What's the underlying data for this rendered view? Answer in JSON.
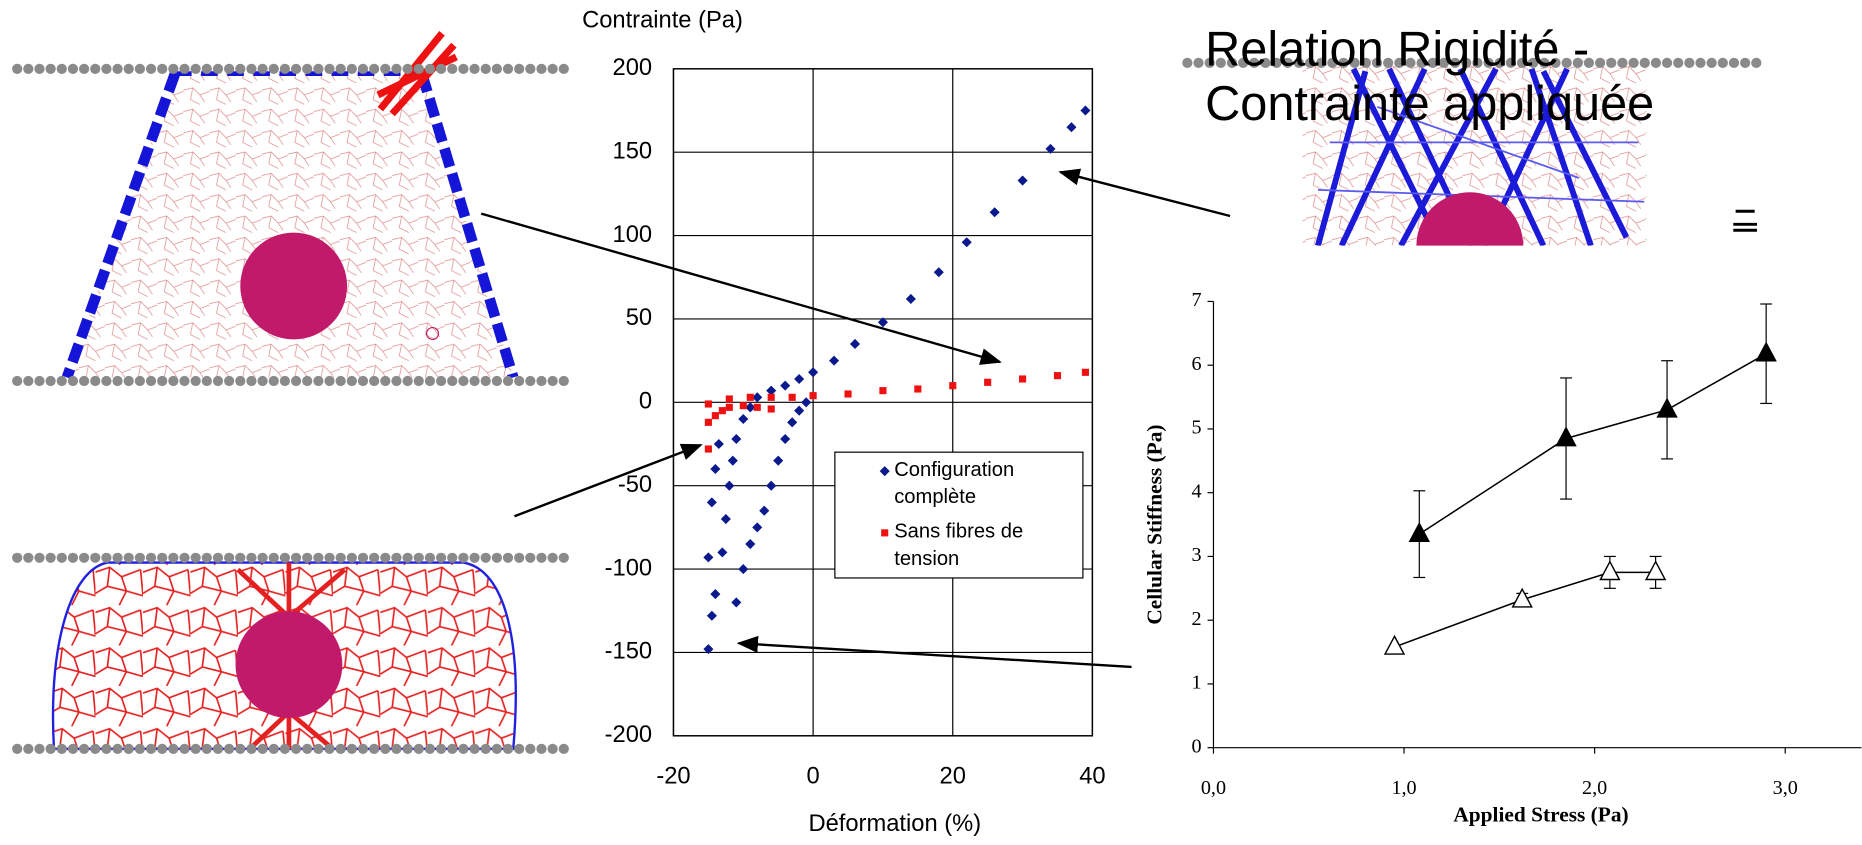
{
  "slide_title": "Relation Rigidité  - Contrainte appliquée",
  "chart_data": [
    {
      "type": "scatter",
      "ylabel": "Contrainte (Pa)",
      "xlabel": "Déformation (%)",
      "xlim": [
        -20,
        40
      ],
      "ylim": [
        -200,
        200
      ],
      "xticks": [
        -20,
        0,
        20,
        40
      ],
      "yticks": [
        -200,
        -150,
        -100,
        -50,
        0,
        50,
        100,
        150,
        200
      ],
      "grid": true,
      "series": [
        {
          "name": "Configuration complète",
          "color": "#0a1a8c",
          "marker": "diamond",
          "x": [
            -15,
            -14.5,
            -14,
            -13,
            -12.5,
            -12,
            -11.5,
            -11,
            -10,
            -9,
            -8,
            -6,
            -4,
            -2,
            0,
            3,
            6,
            10,
            14,
            18,
            22,
            26,
            30,
            34,
            37,
            39,
            -15,
            -14.5,
            -14,
            -13.5,
            -11,
            -10,
            -9,
            -8,
            -7,
            -6,
            -5,
            -4,
            -3,
            -2,
            -1
          ],
          "values": [
            -148,
            -128,
            -115,
            -90,
            -70,
            -50,
            -35,
            -22,
            -10,
            -3,
            3,
            7,
            10,
            14,
            18,
            25,
            35,
            48,
            62,
            78,
            96,
            114,
            133,
            152,
            165,
            175,
            -93,
            -60,
            -40,
            -25,
            -120,
            -100,
            -85,
            -75,
            -65,
            -50,
            -35,
            -22,
            -12,
            -5,
            0
          ]
        },
        {
          "name": "Sans fibres de tension",
          "color": "#ee1111",
          "marker": "square",
          "x": [
            -15,
            -15,
            -14,
            -13,
            -12,
            -10,
            -8,
            -6,
            -15,
            -12,
            -9,
            -6,
            -3,
            0,
            5,
            10,
            15,
            20,
            25,
            30,
            35,
            39
          ],
          "values": [
            -28,
            -12,
            -8,
            -5,
            -3,
            -2,
            -3,
            -4,
            -1,
            2,
            3,
            3,
            3,
            4,
            5,
            7,
            8,
            10,
            12,
            14,
            16,
            18
          ]
        }
      ]
    },
    {
      "type": "line",
      "ylabel": "Cellular Stiffness  (Pa)",
      "xlabel": "Applied Stress  (Pa)",
      "xlim": [
        0,
        3.4
      ],
      "ylim": [
        0,
        7
      ],
      "xticks": [
        {
          "value": 0,
          "label": "0,0"
        },
        {
          "value": 1,
          "label": "1,0"
        },
        {
          "value": 2,
          "label": "2,0"
        },
        {
          "value": 3,
          "label": "3,0"
        }
      ],
      "yticks": [
        0,
        1,
        2,
        3,
        4,
        5,
        6,
        7
      ],
      "grid": false,
      "series": [
        {
          "color": "#000000",
          "fill": "#000000",
          "x": [
            1.08,
            1.85,
            2.38,
            2.9
          ],
          "values": [
            3.35,
            4.85,
            5.3,
            6.18
          ],
          "errors": [
            0.68,
            0.95,
            0.77,
            0.78
          ]
        },
        {
          "color": "#000000",
          "fill": "#ffffff",
          "x": [
            0.95,
            1.62,
            2.08,
            2.32
          ],
          "values": [
            1.58,
            2.32,
            2.75,
            2.75
          ],
          "errors": [
            0,
            0.1,
            0.25,
            0.25
          ]
        }
      ]
    }
  ]
}
